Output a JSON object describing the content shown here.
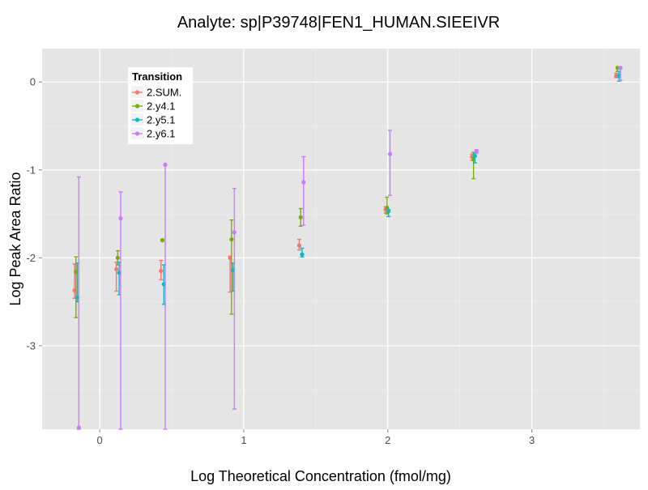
{
  "chart_data": {
    "type": "scatter",
    "title": "Analyte: sp|P39748|FEN1_HUMAN.SIEEIVR",
    "xlabel": "Log Theoretical Concentration (fmol/mg)",
    "ylabel": "Log Peak Area Ratio",
    "xlim": [
      -0.4,
      3.75
    ],
    "ylim": [
      -3.95,
      0.38
    ],
    "x_ticks": [
      0,
      1,
      2,
      3
    ],
    "y_ticks": [
      -3,
      -2,
      -1,
      0
    ],
    "x_tick_labels": [
      "0",
      "1",
      "2",
      "3"
    ],
    "y_tick_labels": [
      "-3",
      "-2",
      "-1",
      "0"
    ],
    "grid": true,
    "error_bars": true,
    "legend": {
      "title": "Transition",
      "position": "top-left",
      "entries": [
        "2.SUM.",
        "2.y4.1",
        "2.y5.1",
        "2.y6.1"
      ]
    },
    "series": [
      {
        "name": "2.SUM.",
        "color": "#F8766D",
        "points": [
          {
            "x": -0.175,
            "y": -2.37,
            "lo": -2.46,
            "hi": -2.07
          },
          {
            "x": 0.115,
            "y": -2.13,
            "lo": -2.38,
            "hi": -2.05
          },
          {
            "x": 0.425,
            "y": -2.15,
            "lo": -2.25,
            "hi": -2.03
          },
          {
            "x": 0.905,
            "y": -2.0,
            "lo": -2.39,
            "hi": -1.98
          },
          {
            "x": 1.385,
            "y": -1.86,
            "lo": -1.91,
            "hi": -1.79
          },
          {
            "x": 1.985,
            "y": -1.45,
            "lo": -1.49,
            "hi": -1.42
          },
          {
            "x": 2.585,
            "y": -0.85,
            "lo": -0.89,
            "hi": -0.82
          },
          {
            "x": 3.585,
            "y": 0.07,
            "lo": 0.05,
            "hi": 0.1
          }
        ]
      },
      {
        "name": "2.y4.1",
        "color": "#7CAE00",
        "points": [
          {
            "x": -0.165,
            "y": -2.16,
            "lo": -2.68,
            "hi": -1.99
          },
          {
            "x": 0.125,
            "y": -2.0,
            "lo": -2.08,
            "hi": -1.92
          },
          {
            "x": 0.435,
            "y": -1.8,
            "lo": -1.81,
            "hi": -1.79
          },
          {
            "x": 0.915,
            "y": -1.79,
            "lo": -2.64,
            "hi": -1.57
          },
          {
            "x": 1.395,
            "y": -1.54,
            "lo": -1.64,
            "hi": -1.44
          },
          {
            "x": 1.995,
            "y": -1.43,
            "lo": -1.5,
            "hi": -1.31
          },
          {
            "x": 2.595,
            "y": -0.88,
            "lo": -1.1,
            "hi": -0.8
          },
          {
            "x": 3.595,
            "y": 0.16,
            "lo": 0.12,
            "hi": 0.17
          }
        ]
      },
      {
        "name": "2.y5.1",
        "color": "#00BFC4",
        "points": [
          {
            "x": -0.155,
            "y": -2.45,
            "lo": -2.5,
            "hi": -2.06
          },
          {
            "x": 0.135,
            "y": -2.17,
            "lo": -2.42,
            "hi": -2.05
          },
          {
            "x": 0.445,
            "y": -2.3,
            "lo": -2.53,
            "hi": -2.08
          },
          {
            "x": 0.925,
            "y": -2.14,
            "lo": -2.38,
            "hi": -2.06
          },
          {
            "x": 1.405,
            "y": -1.96,
            "lo": -1.99,
            "hi": -1.89
          },
          {
            "x": 2.005,
            "y": -1.47,
            "lo": -1.53,
            "hi": -1.45
          },
          {
            "x": 2.605,
            "y": -0.84,
            "lo": -0.92,
            "hi": -0.81
          },
          {
            "x": 3.605,
            "y": 0.07,
            "lo": 0.01,
            "hi": 0.12
          }
        ]
      },
      {
        "name": "2.y6.1",
        "color": "#C77CFF",
        "points": [
          {
            "x": -0.145,
            "y": -3.93,
            "lo": -3.95,
            "hi": -1.08
          },
          {
            "x": 0.145,
            "y": -1.55,
            "lo": -3.95,
            "hi": -1.25
          },
          {
            "x": 0.455,
            "y": -0.94,
            "lo": -3.95,
            "hi": -0.94
          },
          {
            "x": 0.935,
            "y": -1.71,
            "lo": -3.72,
            "hi": -1.21
          },
          {
            "x": 1.415,
            "y": -1.14,
            "lo": -1.63,
            "hi": -0.85
          },
          {
            "x": 2.015,
            "y": -0.82,
            "lo": -1.29,
            "hi": -0.55
          },
          {
            "x": 2.615,
            "y": -0.79,
            "lo": -0.81,
            "hi": -0.77
          },
          {
            "x": 3.615,
            "y": 0.16,
            "lo": 0.02,
            "hi": 0.17
          }
        ]
      }
    ]
  }
}
